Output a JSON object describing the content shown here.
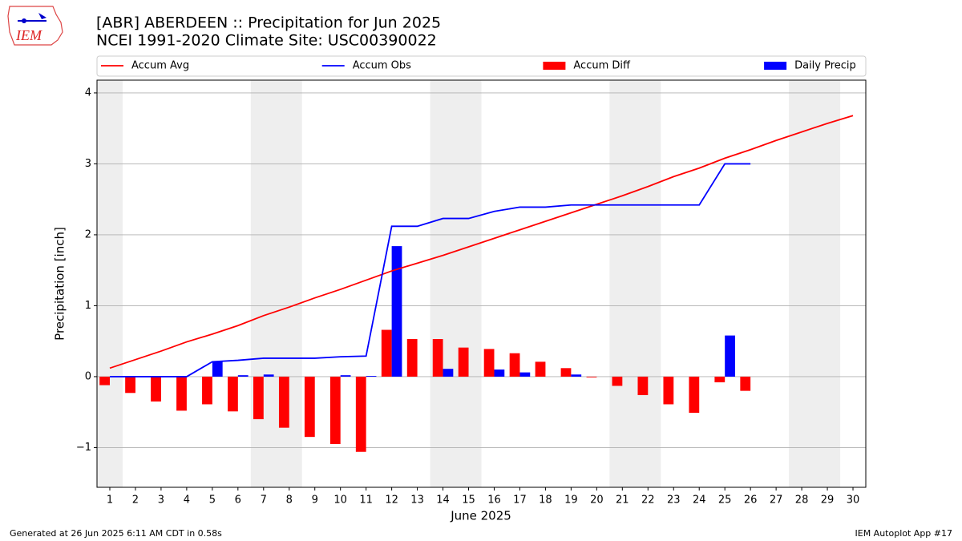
{
  "logo_text": "IEM",
  "footer_left": "Generated at 26 Jun 2025 6:11 AM CDT in 0.58s",
  "footer_right": "IEM Autoplot App #17",
  "chart_data": {
    "type": "bar",
    "title": "[ABR] ABERDEEN :: Precipitation for Jun 2025",
    "subtitle": "NCEI 1991-2020 Climate Site: USC00390022",
    "x_label": "June 2025",
    "y_label": "Precipitation [inch]",
    "x": [
      1,
      2,
      3,
      4,
      5,
      6,
      7,
      8,
      9,
      10,
      11,
      12,
      13,
      14,
      15,
      16,
      17,
      18,
      19,
      20,
      21,
      22,
      23,
      24,
      25,
      26,
      27,
      28,
      29,
      30
    ],
    "xlim": [
      0.5,
      30.5
    ],
    "xticks": [
      1,
      2,
      3,
      4,
      5,
      6,
      7,
      8,
      9,
      10,
      11,
      12,
      13,
      14,
      15,
      16,
      17,
      18,
      19,
      20,
      21,
      22,
      23,
      24,
      25,
      26,
      27,
      28,
      29,
      30
    ],
    "ylim": [
      -1.56,
      4.18
    ],
    "yticks": [
      {
        "value": -1,
        "label": "−1"
      },
      0,
      1,
      2,
      3,
      4
    ],
    "grid": true,
    "shaded_spans": [
      [
        0.5,
        1.5
      ],
      [
        6.5,
        8.5
      ],
      [
        13.5,
        15.5
      ],
      [
        20.5,
        22.5
      ],
      [
        27.5,
        29.5
      ]
    ],
    "shade_color": "#eeeeee",
    "legend": "top",
    "series": [
      {
        "name": "Accum Avg",
        "type": "line",
        "color": "#ff0000",
        "values": [
          0.12,
          0.24,
          0.36,
          0.49,
          0.6,
          0.72,
          0.86,
          0.98,
          1.11,
          1.23,
          1.36,
          1.49,
          1.6,
          1.71,
          1.83,
          1.95,
          2.07,
          2.19,
          2.31,
          2.43,
          2.55,
          2.68,
          2.82,
          2.94,
          3.08,
          3.2,
          3.33,
          3.45,
          3.57,
          3.68
        ]
      },
      {
        "name": "Accum Obs",
        "type": "line",
        "color": "#0000ff",
        "values": [
          0,
          0,
          0,
          0,
          0.21,
          0.23,
          0.26,
          0.26,
          0.26,
          0.28,
          0.29,
          2.12,
          2.12,
          2.23,
          2.23,
          2.33,
          2.39,
          2.39,
          2.42,
          2.42,
          2.42,
          2.42,
          2.42,
          2.42,
          3.0,
          3.0,
          null,
          null,
          null,
          null
        ]
      },
      {
        "name": "Accum Diff",
        "type": "bar",
        "color": "#ff0000",
        "values": [
          -0.12,
          -0.23,
          -0.35,
          -0.48,
          -0.39,
          -0.49,
          -0.6,
          -0.72,
          -0.85,
          -0.95,
          -1.06,
          0.66,
          0.53,
          0.53,
          0.41,
          0.39,
          0.33,
          0.21,
          0.12,
          -0.01,
          -0.13,
          -0.26,
          -0.39,
          -0.51,
          -0.08,
          -0.2,
          null,
          null,
          null,
          null
        ]
      },
      {
        "name": "Daily Precip",
        "type": "bar",
        "color": "#0000ff",
        "values": [
          0,
          0,
          0,
          0,
          0.21,
          0.02,
          0.03,
          0,
          0,
          0.02,
          0.01,
          1.84,
          0,
          0.11,
          0,
          0.1,
          0.06,
          0,
          0.03,
          0,
          0,
          0,
          0,
          0,
          0.58,
          0,
          null,
          null,
          null,
          null
        ]
      }
    ]
  }
}
